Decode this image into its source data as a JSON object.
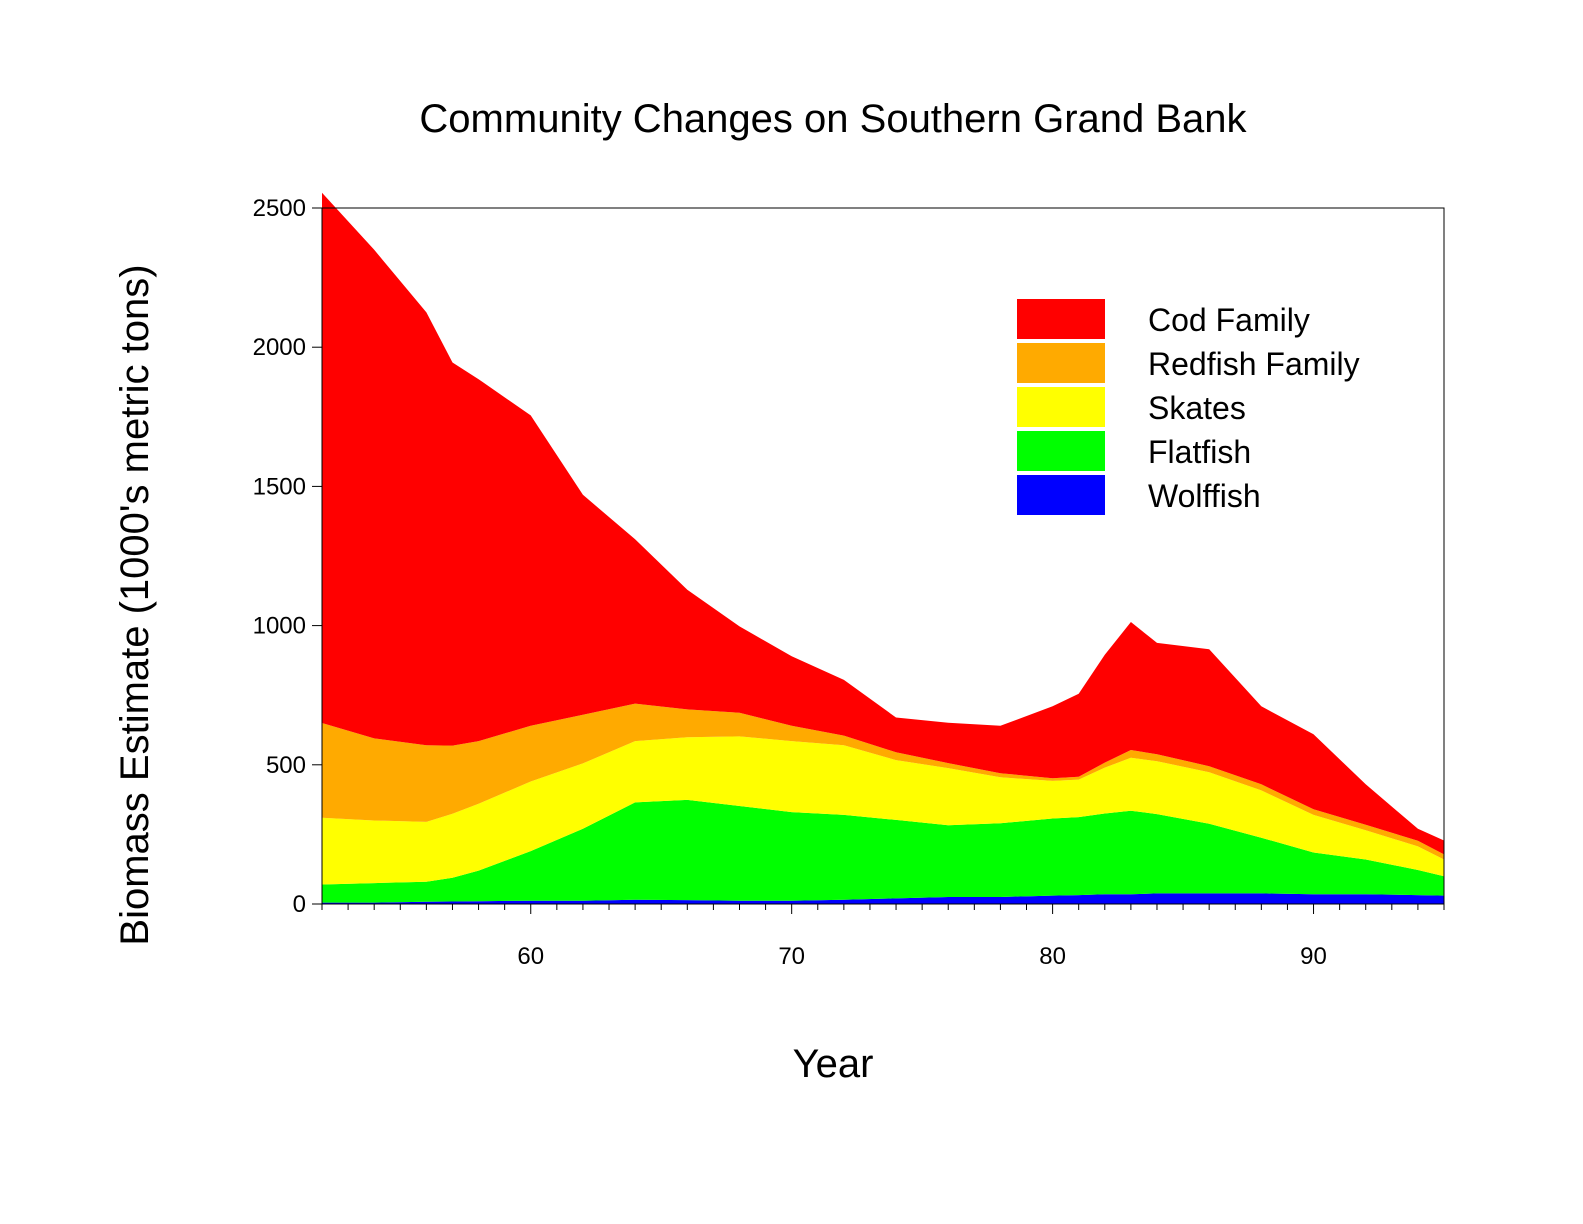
{
  "chart_data": {
    "type": "area",
    "stacked": true,
    "title": "Community Changes on Southern Grand Bank",
    "xlabel": "Year",
    "ylabel": "Biomass Estimate (1000's metric tons)",
    "xlim": [
      52,
      95
    ],
    "ylim": [
      0,
      2500
    ],
    "xticks": [
      60,
      70,
      80,
      90
    ],
    "yticks": [
      0,
      500,
      1000,
      1500,
      2000,
      2500
    ],
    "grid": false,
    "legend_position": "top-right",
    "x": [
      52,
      54,
      56,
      57,
      58,
      60,
      62,
      64,
      66,
      68,
      70,
      72,
      74,
      76,
      78,
      80,
      81,
      82,
      83,
      84,
      86,
      88,
      90,
      92,
      94,
      95
    ],
    "series": [
      {
        "name": "Wolffish",
        "color": "#0000ff",
        "values": [
          5,
          5,
          8,
          9,
          10,
          12,
          12,
          15,
          14,
          12,
          12,
          15,
          20,
          25,
          25,
          30,
          32,
          35,
          35,
          38,
          38,
          38,
          35,
          35,
          32,
          30
        ]
      },
      {
        "name": "Flatfish",
        "color": "#00ff00",
        "values": [
          65,
          70,
          72,
          85,
          110,
          178,
          258,
          350,
          360,
          340,
          318,
          305,
          282,
          258,
          265,
          277,
          280,
          290,
          300,
          285,
          250,
          200,
          150,
          125,
          90,
          70
        ]
      },
      {
        "name": "Skates",
        "color": "#ffff00",
        "values": [
          240,
          225,
          215,
          230,
          240,
          250,
          235,
          220,
          225,
          250,
          255,
          250,
          215,
          205,
          165,
          135,
          135,
          165,
          190,
          190,
          185,
          170,
          135,
          105,
          85,
          60
        ]
      },
      {
        "name": "Redfish Family",
        "color": "#ffaa00",
        "values": [
          340,
          295,
          275,
          245,
          225,
          200,
          175,
          135,
          100,
          85,
          55,
          35,
          28,
          18,
          15,
          10,
          10,
          18,
          28,
          25,
          22,
          22,
          20,
          20,
          20,
          18
        ]
      },
      {
        "name": "Cod Family",
        "color": "#ff0000",
        "values": [
          1905,
          1755,
          1555,
          1376,
          1300,
          1115,
          790,
          590,
          430,
          310,
          250,
          200,
          125,
          145,
          170,
          258,
          298,
          387,
          460,
          400,
          420,
          280,
          270,
          145,
          43,
          50
        ]
      }
    ],
    "legend": [
      {
        "label": "Cod Family",
        "color": "#ff0000"
      },
      {
        "label": "Redfish Family",
        "color": "#ffaa00"
      },
      {
        "label": "Skates",
        "color": "#ffff00"
      },
      {
        "label": "Flatfish",
        "color": "#00ff00"
      },
      {
        "label": "Wolffish",
        "color": "#0000ff"
      }
    ]
  }
}
